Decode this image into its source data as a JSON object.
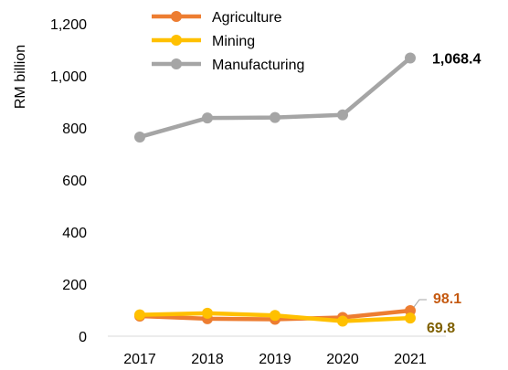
{
  "chart_data": {
    "type": "line",
    "title": "",
    "xlabel": "",
    "ylabel": "RM billion",
    "x": [
      "2017",
      "2018",
      "2019",
      "2020",
      "2021"
    ],
    "ylim": [
      0,
      1200
    ],
    "y_ticks": [
      "0",
      "200",
      "400",
      "600",
      "800",
      "1,000",
      "1,200"
    ],
    "grid": false,
    "legend_position": "top-center",
    "series": [
      {
        "name": "Agriculture",
        "color": "#ED7D31",
        "values": [
          77,
          67,
          65,
          72,
          98.1
        ]
      },
      {
        "name": "Mining",
        "color": "#FFC000",
        "values": [
          82,
          88,
          80,
          58,
          69.8
        ]
      },
      {
        "name": "Manufacturing",
        "color": "#A5A5A5",
        "values": [
          765,
          838,
          840,
          850,
          1068.4
        ]
      }
    ],
    "end_labels": [
      {
        "series": "Manufacturing",
        "text": "1,068.4",
        "color": "#000000"
      },
      {
        "series": "Agriculture",
        "text": "98.1",
        "color": "#C55A11"
      },
      {
        "series": "Mining",
        "text": "69.8",
        "color": "#7F6000"
      }
    ]
  }
}
